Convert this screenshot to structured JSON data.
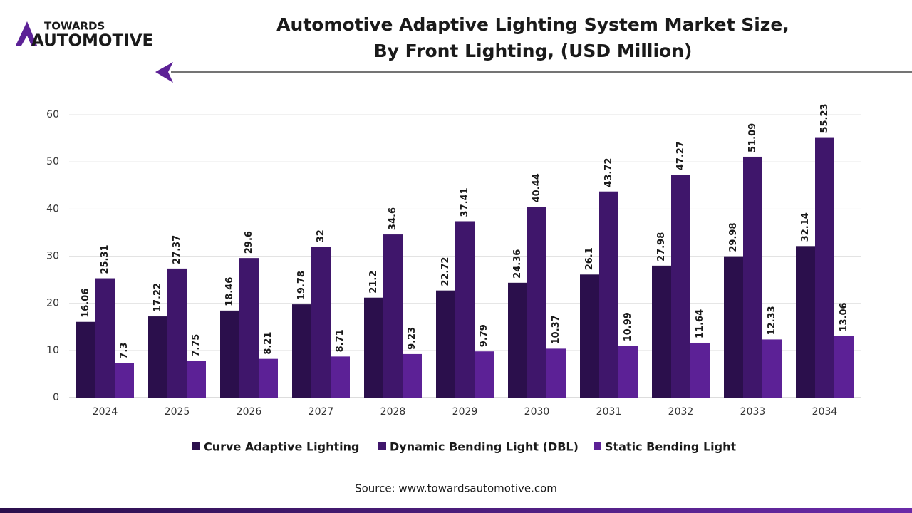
{
  "logo": {
    "line1": "TOWARDS",
    "line2": "AUTOMOTIVE"
  },
  "chart_data": {
    "type": "bar",
    "title": [
      "Automotive Adaptive Lighting System Market Size,",
      "By Front Lighting, (USD Million)"
    ],
    "categories": [
      "2024",
      "2025",
      "2026",
      "2027",
      "2028",
      "2029",
      "2030",
      "2031",
      "2032",
      "2033",
      "2034"
    ],
    "series": [
      {
        "name": "Curve Adaptive Lighting",
        "color": "#2b0f4c",
        "values": [
          16.06,
          17.22,
          18.46,
          19.78,
          21.2,
          22.72,
          24.36,
          26.1,
          27.98,
          29.98,
          32.14
        ]
      },
      {
        "name": "Dynamic Bending Light (DBL)",
        "color": "#3f166b",
        "values": [
          25.31,
          27.37,
          29.6,
          32,
          34.6,
          37.41,
          40.44,
          43.72,
          47.27,
          51.09,
          55.23
        ]
      },
      {
        "name": "Static Bending Light",
        "color": "#5c2196",
        "values": [
          7.3,
          7.75,
          8.21,
          8.71,
          9.23,
          9.79,
          10.37,
          10.99,
          11.64,
          12.33,
          13.06
        ]
      }
    ],
    "ylim": [
      0,
      60
    ],
    "yticks": [
      0,
      10,
      20,
      30,
      40,
      50,
      60
    ],
    "grid": true,
    "legend": "bottom",
    "source": "Source: www.towardsautomotive.com"
  }
}
